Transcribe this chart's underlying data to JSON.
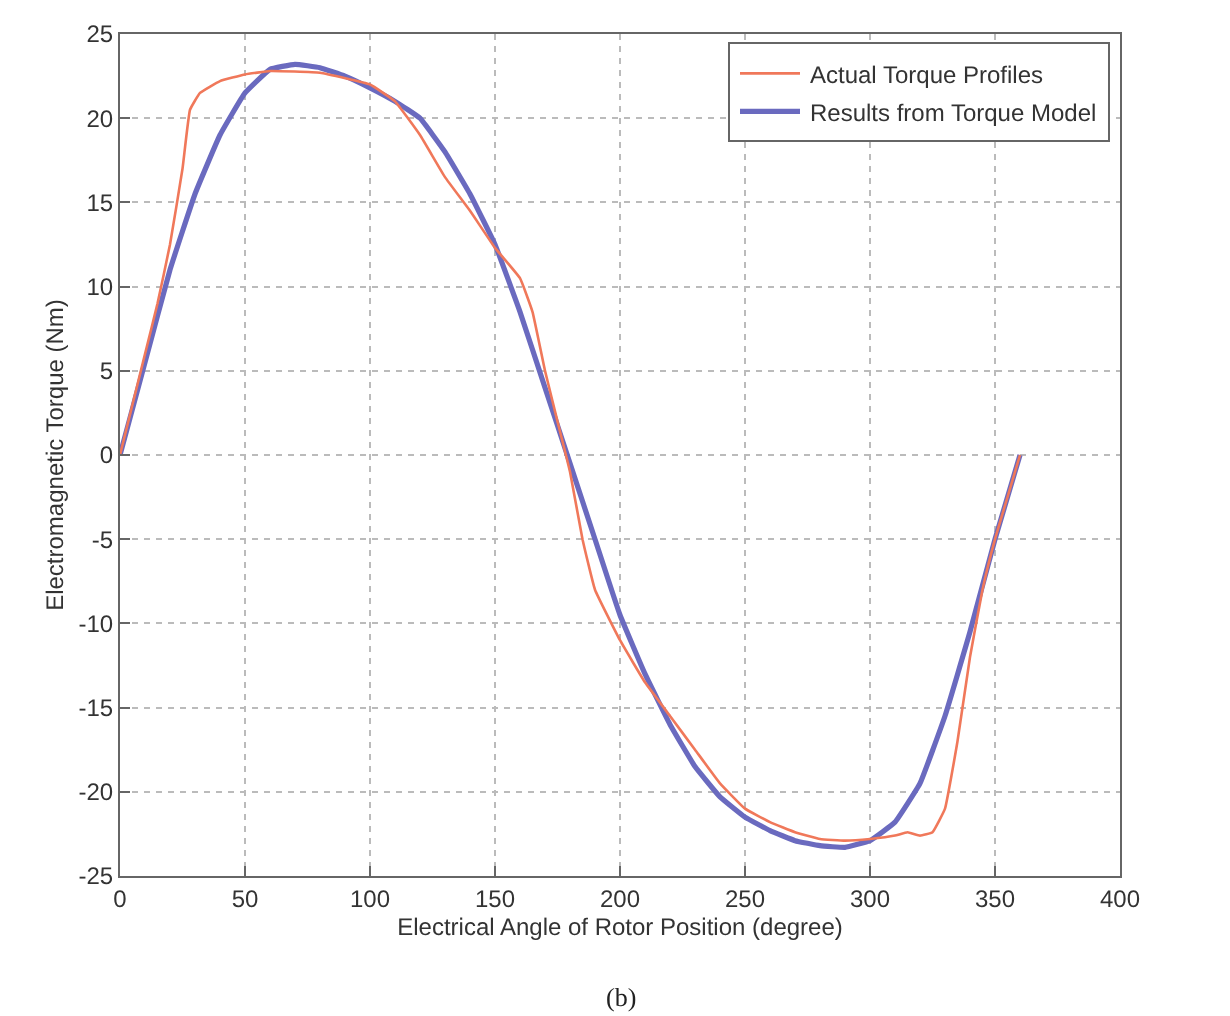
{
  "chart_data": {
    "type": "line",
    "xlabel": "Electrical Angle of Rotor Position (degree)",
    "ylabel": "Electromagnetic Torque (Nm)",
    "xlim": [
      0,
      400
    ],
    "xticks": [
      0,
      50,
      100,
      150,
      200,
      250,
      300,
      350,
      400
    ],
    "ylim": [
      -25,
      25
    ],
    "yticks": [
      -25,
      -20,
      -15,
      -10,
      -5,
      0,
      5,
      10,
      15,
      20,
      25
    ],
    "grid": true,
    "legend": "top right",
    "line_style": "solid",
    "marker": "none",
    "annotations": [
      "(b)"
    ],
    "series": [
      {
        "name": "Actual Torque Profiles",
        "color": "#f0785a",
        "x": [
          0,
          5,
          10,
          15,
          20,
          25,
          28,
          32,
          40,
          50,
          60,
          80,
          100,
          110,
          120,
          130,
          140,
          150,
          160,
          165,
          170,
          175,
          180,
          185,
          190,
          200,
          210,
          220,
          230,
          240,
          250,
          260,
          270,
          280,
          290,
          300,
          310,
          315,
          320,
          325,
          330,
          335,
          340,
          345,
          350,
          355,
          360
        ],
        "values": [
          0,
          3,
          6,
          9,
          12.5,
          17,
          20.5,
          21.5,
          22.2,
          22.6,
          22.8,
          22.7,
          22,
          21,
          19,
          16.5,
          14.5,
          12.3,
          10.5,
          8.5,
          5,
          2,
          -1,
          -5,
          -8,
          -11,
          -13.5,
          -15.5,
          -17.5,
          -19.5,
          -21,
          -21.8,
          -22.4,
          -22.8,
          -22.9,
          -22.8,
          -22.6,
          -22.4,
          -22.6,
          -22.4,
          -21,
          -17,
          -12,
          -8,
          -5,
          -2.5,
          0
        ]
      },
      {
        "name": "Results from Torque Model",
        "color": "#6a6abf",
        "x": [
          0,
          10,
          20,
          30,
          40,
          50,
          60,
          70,
          80,
          90,
          100,
          110,
          120,
          130,
          140,
          150,
          160,
          170,
          180,
          190,
          200,
          210,
          220,
          230,
          240,
          250,
          260,
          270,
          280,
          290,
          300,
          310,
          320,
          330,
          340,
          350,
          360
        ],
        "values": [
          0,
          5.5,
          11,
          15.5,
          19,
          21.5,
          22.9,
          23.2,
          23,
          22.5,
          21.8,
          21,
          20,
          18,
          15.5,
          12.5,
          8.5,
          4,
          -0.5,
          -5,
          -9.5,
          -13,
          -16,
          -18.5,
          -20.3,
          -21.5,
          -22.3,
          -22.9,
          -23.2,
          -23.3,
          -22.9,
          -21.8,
          -19.5,
          -15.5,
          -10.5,
          -5,
          0
        ]
      }
    ]
  }
}
